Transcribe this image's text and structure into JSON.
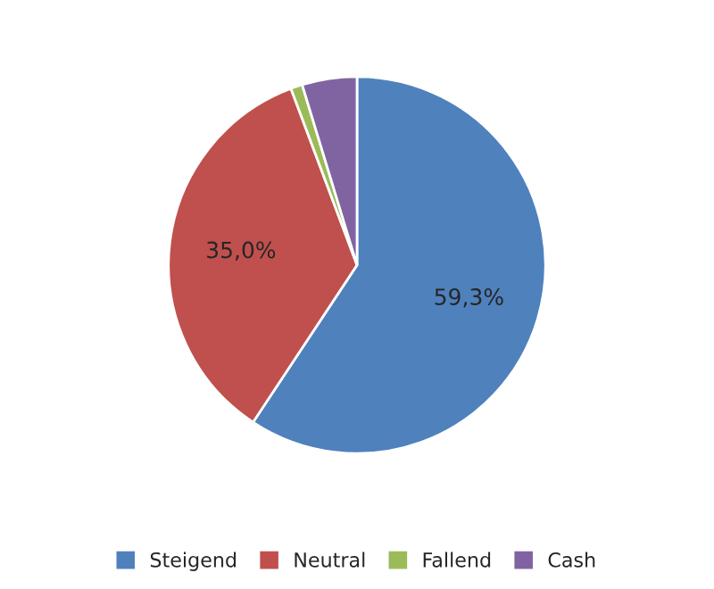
{
  "chart_data": {
    "type": "pie",
    "categories": [
      "Steigend",
      "Neutral",
      "Fallend",
      "Cash"
    ],
    "values": [
      59.3,
      35.0,
      1.0,
      4.7
    ],
    "colors": [
      "#4f81bd",
      "#c0504d",
      "#9bbb59",
      "#8064a2"
    ],
    "value_labels": [
      "59,3%",
      "35,0%",
      null,
      null
    ],
    "legend": "bottom"
  }
}
